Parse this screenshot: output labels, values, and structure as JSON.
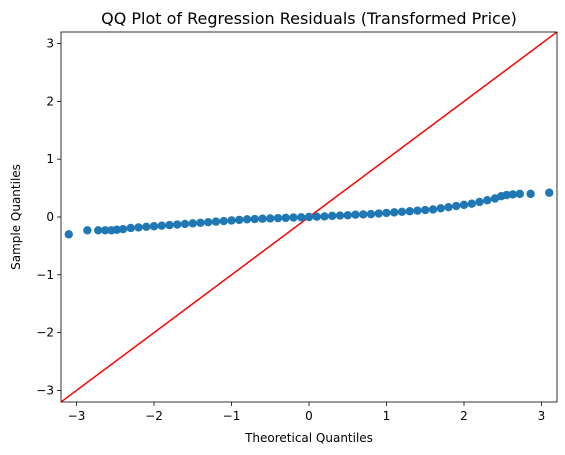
{
  "chart_data": {
    "type": "scatter",
    "title": "QQ Plot of Regression Residuals (Transformed Price)",
    "xlabel": "Theoretical Quantiles",
    "ylabel": "Sample Quantiles",
    "xlim": [
      -3.2,
      3.2
    ],
    "ylim": [
      -3.2,
      3.2
    ],
    "x_ticks": [
      -3,
      -2,
      -1,
      0,
      1,
      2,
      3
    ],
    "y_ticks": [
      -3,
      -2,
      -1,
      0,
      1,
      2,
      3
    ],
    "x_tick_labels": [
      "−3",
      "−2",
      "−1",
      "0",
      "1",
      "2",
      "3"
    ],
    "y_tick_labels": [
      "−3",
      "−2",
      "−1",
      "0",
      "1",
      "2",
      "3"
    ],
    "grid": false,
    "legend": "none",
    "point_color": "#1f77b4",
    "line_color": "#ff0000",
    "reference_line": {
      "x": [
        -3.2,
        3.2
      ],
      "y": [
        -3.2,
        3.2
      ]
    },
    "series": [
      {
        "x": [
          -3.1,
          -2.86,
          -2.72,
          -2.63,
          -2.55,
          -2.48,
          -2.4,
          -2.3,
          -2.2,
          -2.1,
          -2.0,
          -1.9,
          -1.8,
          -1.7,
          -1.6,
          -1.5,
          -1.4,
          -1.3,
          -1.2,
          -1.1,
          -1.0,
          -0.9,
          -0.8,
          -0.7,
          -0.6,
          -0.5,
          -0.4,
          -0.3,
          -0.2,
          -0.1,
          0.0,
          0.1,
          0.2,
          0.3,
          0.4,
          0.5,
          0.6,
          0.7,
          0.8,
          0.9,
          1.0,
          1.1,
          1.2,
          1.3,
          1.4,
          1.5,
          1.6,
          1.7,
          1.8,
          1.9,
          2.0,
          2.1,
          2.2,
          2.3,
          2.4,
          2.48,
          2.55,
          2.63,
          2.72,
          2.86,
          3.1
        ],
        "y": [
          -0.3,
          -0.23,
          -0.23,
          -0.23,
          -0.23,
          -0.22,
          -0.21,
          -0.19,
          -0.18,
          -0.17,
          -0.16,
          -0.15,
          -0.14,
          -0.13,
          -0.12,
          -0.11,
          -0.1,
          -0.09,
          -0.08,
          -0.07,
          -0.06,
          -0.05,
          -0.04,
          -0.035,
          -0.03,
          -0.025,
          -0.02,
          -0.015,
          -0.01,
          -0.005,
          0.0,
          0.005,
          0.01,
          0.02,
          0.025,
          0.03,
          0.04,
          0.045,
          0.05,
          0.06,
          0.07,
          0.08,
          0.09,
          0.1,
          0.11,
          0.12,
          0.13,
          0.15,
          0.17,
          0.19,
          0.21,
          0.23,
          0.26,
          0.29,
          0.32,
          0.36,
          0.38,
          0.39,
          0.4,
          0.4,
          0.42
        ]
      }
    ]
  }
}
